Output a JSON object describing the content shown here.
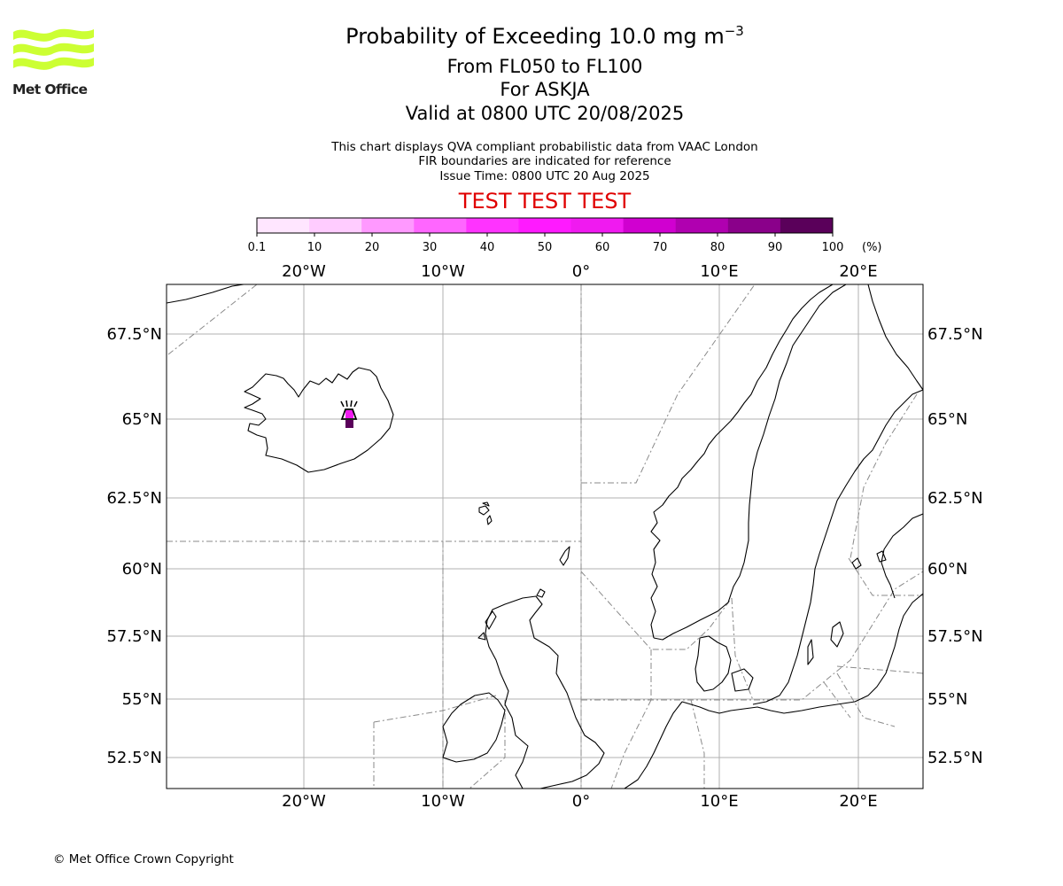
{
  "header": {
    "title_prefix": "Probability of Exceeding 10.0 mg m",
    "title_exponent": "−3",
    "flight_levels": "From FL050 to FL100",
    "volcano": "For ASKJA",
    "valid_time": "Valid at 0800 UTC 20/08/2025",
    "note_line1": "This chart displays QVA compliant probabilistic data from VAAC London",
    "note_line2": "FIR boundaries are indicated for reference",
    "issue_time": "Issue Time: 0800 UTC 20 Aug 2025",
    "test_banner": "TEST TEST TEST",
    "test_banner_color": "#e00000"
  },
  "logo": {
    "text": "Met Office",
    "wave_color": "#ccff33"
  },
  "colorbar": {
    "ticks": [
      "0.1",
      "10",
      "20",
      "30",
      "40",
      "50",
      "60",
      "70",
      "80",
      "90",
      "100"
    ],
    "unit": "(%)",
    "colors": [
      "#ffe6ff",
      "#ffccff",
      "#ff99ff",
      "#ff66ff",
      "#ff33ff",
      "#ff1aff",
      "#f01af0",
      "#d000d0",
      "#b000b0",
      "#8a008a",
      "#5a005a"
    ]
  },
  "map": {
    "lon_labels": [
      "20°W",
      "10°W",
      "0°",
      "10°E",
      "20°E"
    ],
    "lat_labels": [
      "67.5°N",
      "65°N",
      "62.5°N",
      "60°N",
      "57.5°N",
      "55°N",
      "52.5°N"
    ],
    "volcano_marker_icon": "volcano-icon",
    "ash_cells_probability_percent": [
      60,
      100
    ]
  },
  "footer": {
    "copyright": "© Met Office Crown Copyright"
  }
}
